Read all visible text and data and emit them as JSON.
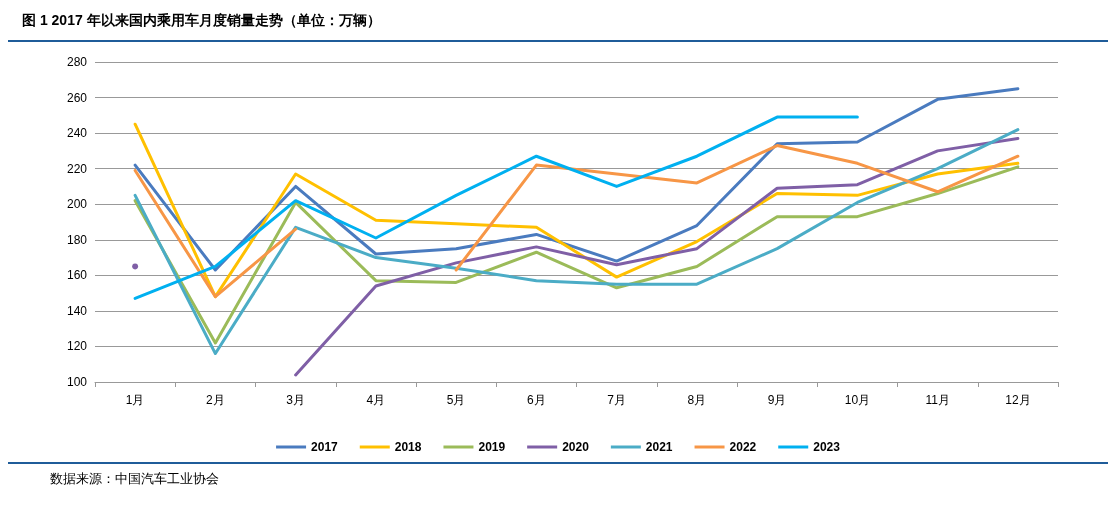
{
  "chart_data": {
    "type": "line",
    "title": "图 1  2017 年以来国内乘用车月度销量走势（单位：万辆）",
    "categories": [
      "1月",
      "2月",
      "3月",
      "4月",
      "5月",
      "6月",
      "7月",
      "8月",
      "9月",
      "10月",
      "11月",
      "12月"
    ],
    "series": [
      {
        "name": "2017",
        "color": "#4a7bbf",
        "values": [
          222,
          163,
          210,
          172,
          175,
          183,
          168,
          188,
          234,
          235,
          259,
          265
        ]
      },
      {
        "name": "2018",
        "color": "#ffc000",
        "values": [
          245,
          148,
          217,
          191,
          189,
          187,
          159,
          179,
          206,
          205,
          217,
          223
        ]
      },
      {
        "name": "2019",
        "color": "#9bbb59",
        "values": [
          202,
          122,
          201,
          157,
          156,
          173,
          153,
          165,
          193,
          193,
          206,
          221
        ]
      },
      {
        "name": "2020",
        "color": "#7f5fa6",
        "values": [
          165,
          null,
          104,
          154,
          167,
          176,
          166,
          175,
          209,
          211,
          230,
          237
        ]
      },
      {
        "name": "2021",
        "color": "#4bacc6",
        "values": [
          205,
          116,
          187,
          170,
          164,
          157,
          155,
          155,
          175,
          201,
          220,
          242
        ]
      },
      {
        "name": "2022",
        "color": "#f79646",
        "values": [
          219,
          148,
          186,
          null,
          163,
          222,
          217,
          212,
          233,
          223,
          207,
          227
        ]
      },
      {
        "name": "2023",
        "color": "#00b0f0",
        "values": [
          147,
          165,
          202,
          181,
          205,
          227,
          210,
          227,
          249,
          249,
          null,
          null
        ]
      }
    ],
    "ylim": [
      100,
      280
    ],
    "yticks": [
      100,
      120,
      140,
      160,
      180,
      200,
      220,
      240,
      260,
      280
    ],
    "grid": "y",
    "legend": "bottom",
    "marker": "none",
    "line_style": "solid",
    "annotations": [
      "数据来源：中国汽车工业协会"
    ]
  }
}
